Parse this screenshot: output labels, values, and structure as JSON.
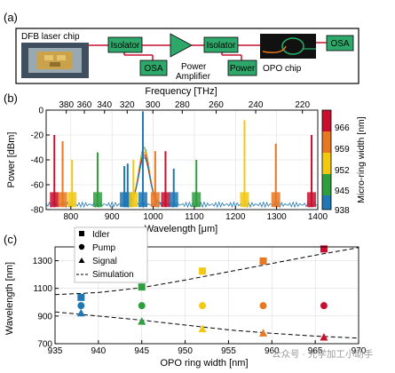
{
  "panel_a": {
    "label": "(a)",
    "laser_title": "DFB laser chip",
    "isolator1": "Isolator",
    "osa1": "OSA",
    "amp_line1": "Power",
    "amp_line2": "Amplifier",
    "isolator2": "Isolator",
    "power_box": "Power",
    "opo_label": "OPO chip",
    "osa2": "OSA",
    "colors": {
      "box_fill": "#2ea86a",
      "line": "#c8102e",
      "frame": "#000000"
    }
  },
  "panel_b": {
    "label": "(b)",
    "top_axis_label": "Frequency [THz]",
    "bottom_axis_label": "Wavelength [μm]",
    "y_axis_label": "Power [dBm]",
    "colorbar_label": "Micro-ring width [nm]",
    "colorbar_ticks": [
      "966",
      "959",
      "952",
      "945",
      "938"
    ],
    "colorbar_colors": [
      "#c8102e",
      "#e87722",
      "#f2c811",
      "#2e9e3e",
      "#1f77b4"
    ]
  },
  "panel_c": {
    "label": "(c)",
    "legend": [
      "Idler",
      "Pump",
      "Signal",
      "Simulation"
    ],
    "watermark": "公众号 · 光学加工小助手"
  },
  "chart_data": [
    {
      "type": "line",
      "title": "",
      "xlabel": "Wavelength [μm]",
      "ylabel": "Power [dBm]",
      "x2label": "Frequency [THz]",
      "xlim": [
        740,
        1400
      ],
      "ylim": [
        -80,
        0
      ],
      "xticks": [
        "800",
        "900",
        "1000",
        "1100",
        "1200",
        "1300",
        "1400"
      ],
      "yticks": [
        "0",
        "-20",
        "-40",
        "-60",
        "-80"
      ],
      "x2ticks": [
        "380",
        "360",
        "340",
        "320",
        "300",
        "280",
        "260",
        "240",
        "220"
      ],
      "grid": true,
      "colorbar": {
        "label": "Micro-ring width [nm]",
        "ticks": [
          966,
          959,
          952,
          945,
          938
        ]
      },
      "peaks": [
        {
          "x": 760,
          "y": -20,
          "color": "#c8102e"
        },
        {
          "x": 780,
          "y": -25,
          "color": "#e87722"
        },
        {
          "x": 803,
          "y": -40,
          "color": "#f2c811"
        },
        {
          "x": 865,
          "y": -34,
          "color": "#2e9e3e"
        },
        {
          "x": 930,
          "y": -45,
          "color": "#1f77b4"
        },
        {
          "x": 938,
          "y": -43,
          "color": "#1f77b4"
        },
        {
          "x": 952,
          "y": -40,
          "color": "#f2c811"
        },
        {
          "x": 975,
          "y": -1,
          "color": "#1f77b4"
        },
        {
          "x": 1005,
          "y": -33,
          "color": "#e87722"
        },
        {
          "x": 1030,
          "y": -33,
          "color": "#c8102e"
        },
        {
          "x": 1050,
          "y": -47,
          "color": "#1f77b4"
        },
        {
          "x": 1105,
          "y": -40,
          "color": "#2e9e3e"
        },
        {
          "x": 1222,
          "y": -8,
          "color": "#f2c811"
        },
        {
          "x": 1298,
          "y": -27,
          "color": "#e87722"
        },
        {
          "x": 1385,
          "y": -20,
          "color": "#c8102e"
        }
      ]
    },
    {
      "type": "scatter",
      "title": "",
      "xlabel": "OPO ring width [nm]",
      "ylabel": "Wavelength [nm]",
      "xlim": [
        935,
        970
      ],
      "ylim": [
        700,
        1400
      ],
      "xticks": [
        "935",
        "940",
        "945",
        "950",
        "955",
        "960",
        "965",
        "970"
      ],
      "yticks": [
        "700",
        "900",
        "1100",
        "1300"
      ],
      "grid": true,
      "series": [
        {
          "name": "Idler",
          "marker": "square",
          "x": [
            938,
            945,
            952,
            959,
            966
          ],
          "y": [
            1035,
            1110,
            1225,
            1298,
            1385
          ]
        },
        {
          "name": "Pump",
          "marker": "circle",
          "x": [
            938,
            945,
            952,
            959,
            966
          ],
          "y": [
            975,
            975,
            975,
            975,
            975
          ]
        },
        {
          "name": "Signal",
          "marker": "triangle",
          "x": [
            938,
            945,
            952,
            959,
            966
          ],
          "y": [
            920,
            860,
            805,
            775,
            745
          ]
        }
      ],
      "point_colors": [
        "#1f77b4",
        "#2e9e3e",
        "#f2c811",
        "#e87722",
        "#c8102e"
      ],
      "simulation": {
        "name": "Simulation",
        "upper": {
          "x": [
            935,
            940,
            945,
            950,
            955,
            960,
            965,
            970
          ],
          "y": [
            1055,
            1070,
            1105,
            1160,
            1220,
            1280,
            1340,
            1395
          ]
        },
        "lower": {
          "x": [
            935,
            940,
            945,
            950,
            955,
            960,
            965,
            970
          ],
          "y": [
            930,
            900,
            870,
            835,
            800,
            775,
            755,
            740
          ]
        }
      }
    }
  ]
}
